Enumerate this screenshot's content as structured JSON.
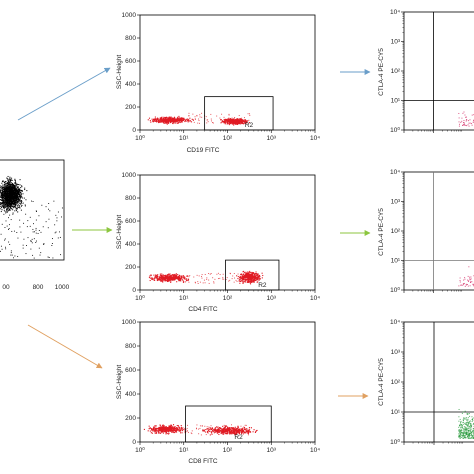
{
  "chart_data": [
    {
      "id": "fsc_ssc",
      "type": "scatter",
      "title": "",
      "xlabel": "",
      "ylabel": "",
      "x_ticks": [
        "00",
        "800",
        "1000"
      ],
      "color": "#000000",
      "note": "partial plot cut off at left edge; dense black event cloud"
    },
    {
      "id": "cd19",
      "type": "scatter",
      "xlabel": "CD19 FITC",
      "ylabel": "SSC-Height",
      "x_scale": "log",
      "xlim": [
        1,
        10000
      ],
      "x_ticks": [
        "10⁰",
        "10¹",
        "10²",
        "10³",
        "10⁴"
      ],
      "ylim": [
        0,
        1000
      ],
      "y_ticks": [
        "0",
        "200",
        "400",
        "600",
        "800",
        "1000"
      ],
      "gate": {
        "name": "R2",
        "x": [
          30,
          1100
        ],
        "y": [
          0,
          290
        ]
      },
      "populations": [
        {
          "x_log": [
            0.05,
            1.3
          ],
          "y": [
            50,
            130
          ]
        },
        {
          "x_log": [
            1.7,
            2.6
          ],
          "y": [
            40,
            120
          ]
        }
      ],
      "color": "#e01b24"
    },
    {
      "id": "cd4",
      "type": "scatter",
      "xlabel": "CD4 FITC",
      "ylabel": "SSC-Height",
      "x_scale": "log",
      "xlim": [
        1,
        10000
      ],
      "x_ticks": [
        "10⁰",
        "10¹",
        "10²",
        "10³",
        "10⁴"
      ],
      "ylim": [
        0,
        1000
      ],
      "y_ticks": [
        "0",
        "200",
        "400",
        "600",
        "800",
        "1000"
      ],
      "gate": {
        "name": "R2",
        "x": [
          90,
          1500
        ],
        "y": [
          0,
          260
        ]
      },
      "populations": [
        {
          "x_log": [
            0.0,
            1.3
          ],
          "y": [
            60,
            160
          ]
        },
        {
          "x_log": [
            2.1,
            2.9
          ],
          "y": [
            40,
            190
          ]
        }
      ],
      "color": "#e01b24"
    },
    {
      "id": "cd8",
      "type": "scatter",
      "xlabel": "CD8 FITC",
      "ylabel": "SSC-Height",
      "x_scale": "log",
      "xlim": [
        1,
        10000
      ],
      "x_ticks": [
        "10⁰",
        "10¹",
        "10²",
        "10³",
        "10⁴"
      ],
      "ylim": [
        0,
        1000
      ],
      "y_ticks": [
        "0",
        "200",
        "400",
        "600",
        "800",
        "1000"
      ],
      "gate": {
        "name": "R2",
        "x": [
          11,
          1000
        ],
        "y": [
          0,
          300
        ]
      },
      "populations": [
        {
          "x_log": [
            0.0,
            1.2
          ],
          "y": [
            60,
            160
          ]
        },
        {
          "x_log": [
            1.2,
            2.9
          ],
          "y": [
            50,
            150
          ]
        }
      ],
      "color": "#e01b24"
    },
    {
      "id": "ctla4_top",
      "type": "scatter",
      "ylabel": "CTLA-4 PE-CY5",
      "y_scale": "log",
      "y_ticks": [
        "10⁰",
        "10¹",
        "10²",
        "10³",
        "10⁴"
      ],
      "quadrant": {
        "x": 10,
        "y": 10
      },
      "color": "#d6336c"
    },
    {
      "id": "ctla4_mid",
      "type": "scatter",
      "ylabel": "CTLA-4 PE-CY5",
      "y_scale": "log",
      "y_ticks": [
        "10⁰",
        "10¹",
        "10²",
        "10³",
        "10⁴"
      ],
      "quadrant": {
        "x": 10,
        "y": 10
      },
      "color": "#d6336c"
    },
    {
      "id": "ctla4_bottom",
      "type": "scatter",
      "ylabel": "CTLA-4 PE-CY5",
      "y_scale": "log",
      "y_ticks": [
        "10⁰",
        "10¹",
        "10²",
        "10³",
        "10⁴"
      ],
      "quadrant": {
        "x": 10,
        "y": 10
      },
      "color": "#2f9e44"
    }
  ],
  "arrows": [
    {
      "name": "arrow-to-cd19",
      "color": "#6a9ec9"
    },
    {
      "name": "arrow-to-cd4",
      "color": "#8cc63f"
    },
    {
      "name": "arrow-to-cd8",
      "color": "#e0a060"
    },
    {
      "name": "arrow-to-ctla4-top",
      "color": "#6a9ec9"
    },
    {
      "name": "arrow-to-ctla4-mid",
      "color": "#8cc63f"
    },
    {
      "name": "arrow-to-ctla4-bottom",
      "color": "#e0a060"
    }
  ]
}
